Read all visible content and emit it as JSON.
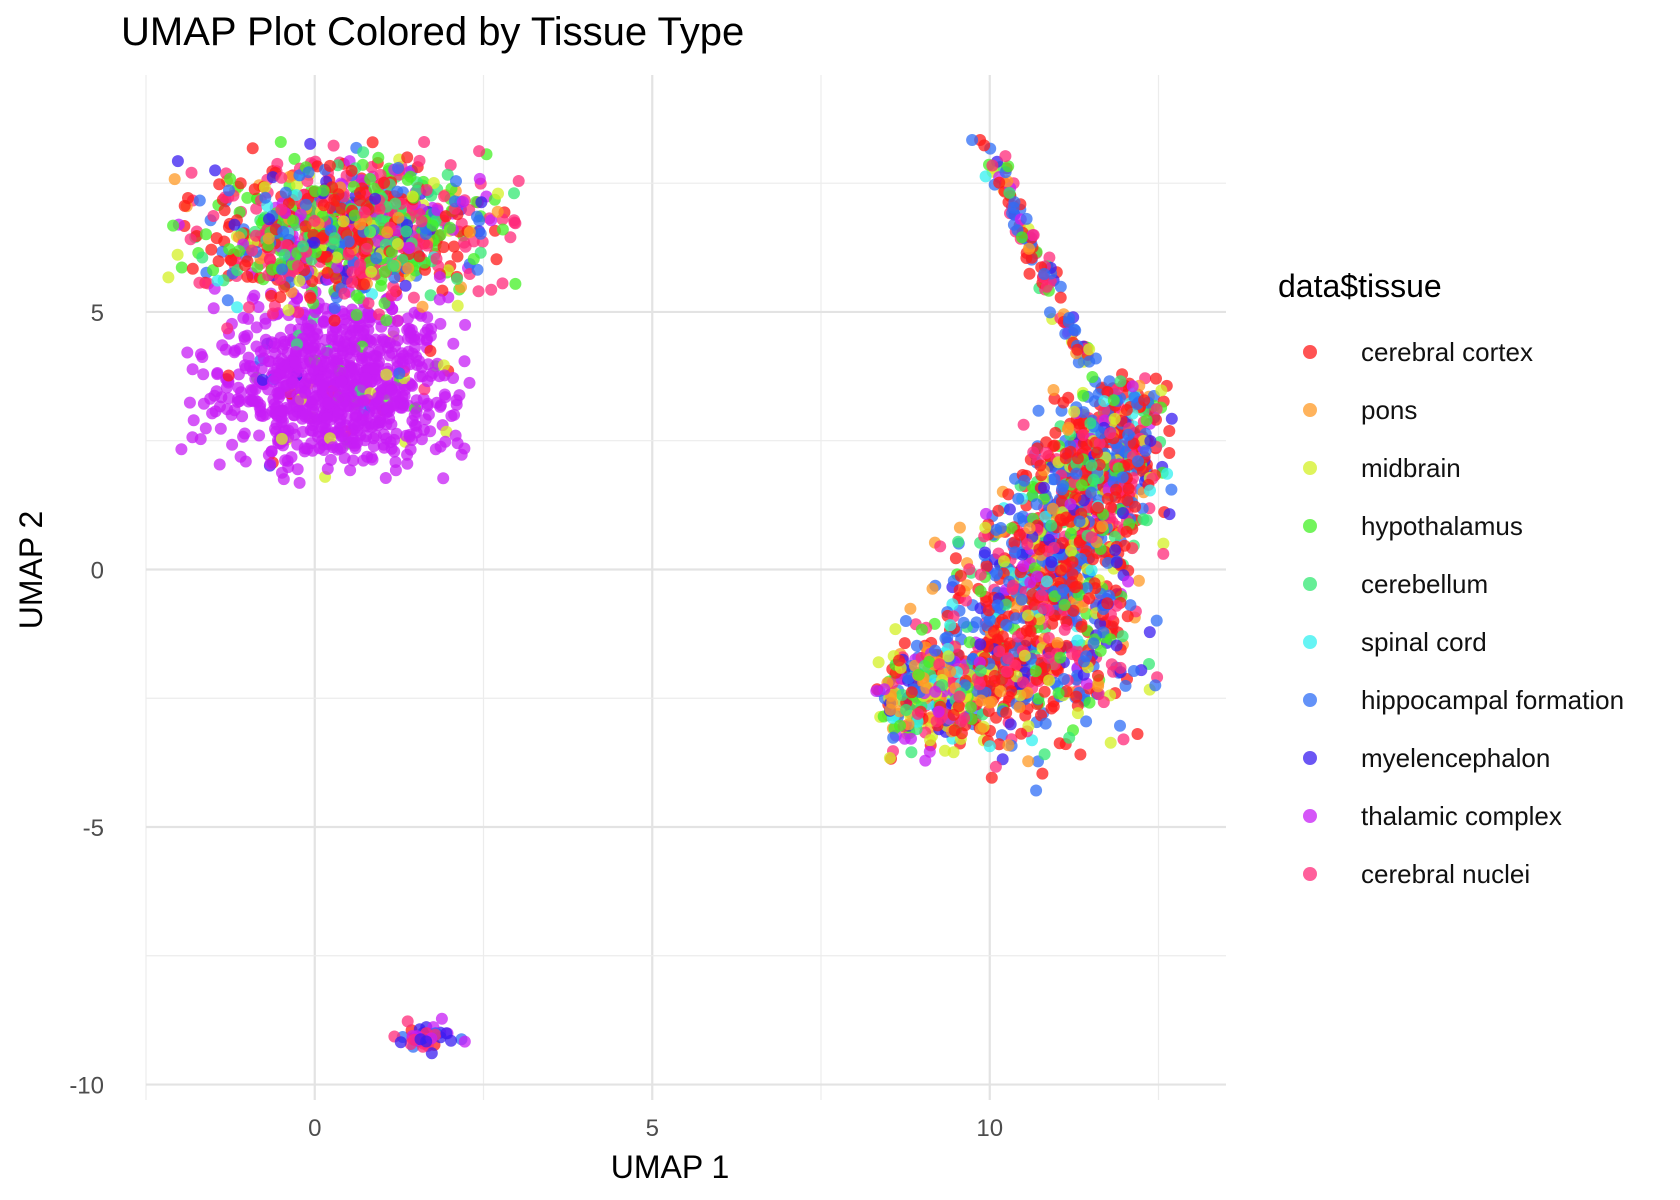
{
  "chart_data": {
    "type": "scatter",
    "title": "UMAP Plot Colored by Tissue Type",
    "xlabel": "UMAP 1",
    "ylabel": "UMAP 2",
    "xlim": [
      -2.5,
      13.5
    ],
    "ylim": [
      -10.3,
      9.6
    ],
    "x_ticks": [
      0,
      5,
      10
    ],
    "y_ticks": [
      -10,
      -5,
      0,
      5
    ],
    "x_tick_labels": [
      "0",
      "5",
      "10"
    ],
    "y_tick_labels": [
      "-10",
      "-5",
      "0",
      "5"
    ],
    "grid": true,
    "legend": {
      "title": "data$tissue",
      "position": "right"
    },
    "series": [
      {
        "name": "cerebral cortex",
        "color": "#ff1a1a"
      },
      {
        "name": "pons",
        "color": "#ff9a26"
      },
      {
        "name": "midbrain",
        "color": "#d4f026"
      },
      {
        "name": "hypothalamus",
        "color": "#44f026"
      },
      {
        "name": "cerebellum",
        "color": "#33e873"
      },
      {
        "name": "spinal cord",
        "color": "#33f0f0"
      },
      {
        "name": "hippocampal formation",
        "color": "#2f6ef5"
      },
      {
        "name": "myelencephalon",
        "color": "#3a1ef0"
      },
      {
        "name": "thalamic complex",
        "color": "#c71ef5"
      },
      {
        "name": "cerebral nuclei",
        "color": "#ff2a7a"
      }
    ],
    "clusters": [
      {
        "label": "upper-left cluster",
        "center": [
          0.5,
          5.6
        ],
        "extent_x": [
          -2.3,
          3.1
        ],
        "extent_y": [
          1.5,
          8.4
        ]
      },
      {
        "label": "right cluster",
        "center": [
          11.0,
          -0.5
        ],
        "extent_x": [
          8.3,
          12.7
        ],
        "extent_y": [
          -4.4,
          8.6
        ]
      },
      {
        "label": "bottom cluster",
        "center": [
          1.6,
          -9.1
        ],
        "extent_x": [
          1.1,
          2.1
        ],
        "extent_y": [
          -9.4,
          -8.8
        ]
      }
    ]
  }
}
